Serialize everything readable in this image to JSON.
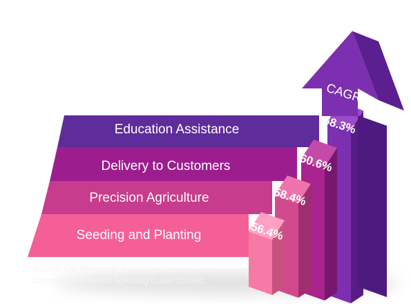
{
  "chart_data": {
    "type": "bar",
    "categories": [
      "Seeding and Planting",
      "Precision Agriculture",
      "Delivery to Customers",
      "Education Assistance"
    ],
    "values": [
      56.4,
      58.4,
      60.6,
      68.3
    ],
    "value_labels": [
      "56.4%",
      "58.4%",
      "60.6%",
      "68.3%"
    ],
    "unit": "%",
    "arrow_label": "CAGR",
    "source_line1": "Source: IDC Worldwide Semiannual",
    "source_line2": "Commercial Robotics Spending Guide 2016H2"
  },
  "colors": {
    "seeding": "#f55f97",
    "precision": "#c73c8c",
    "delivery": "#9c1e8e",
    "education": "#5f2c9b",
    "arrow_front": "#7c2fb0",
    "arrow_side": "#4f1a80"
  }
}
